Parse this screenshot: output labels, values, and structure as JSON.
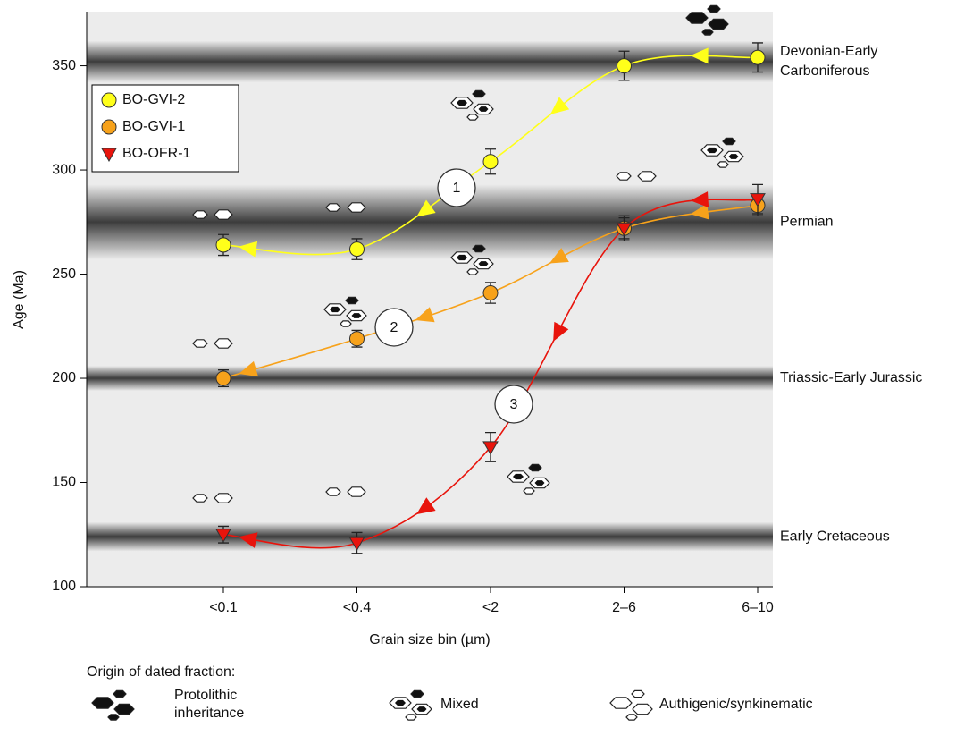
{
  "chart_data": {
    "type": "line",
    "x_label": "Grain size bin (µm)",
    "y_label": "Age (Ma)",
    "categories": [
      "<0.1",
      "<0.4",
      "<2",
      "2–6",
      "6–10"
    ],
    "ylim": [
      100,
      376
    ],
    "yticks": [
      100,
      150,
      200,
      250,
      300,
      350
    ],
    "series": [
      {
        "name": "BO-GVI-2",
        "color": "#ffff1a",
        "marker": "circle",
        "values": [
          264,
          262,
          304,
          350,
          354
        ],
        "errors": [
          5,
          5,
          6,
          7,
          7
        ]
      },
      {
        "name": "BO-GVI-1",
        "color": "#f7a21b",
        "marker": "circle",
        "values": [
          200,
          219,
          241,
          272,
          283
        ],
        "errors": [
          4,
          4,
          5,
          5,
          5
        ]
      },
      {
        "name": "BO-OFR-1",
        "color": "#e8140c",
        "marker": "triangle-down",
        "values": [
          125,
          121,
          167,
          272,
          286
        ],
        "errors": [
          4,
          5,
          7,
          6,
          7
        ]
      }
    ],
    "bands": [
      {
        "label": [
          "Devonian-Early",
          "Carboniferous"
        ],
        "value": 352,
        "range": [
          342,
          362
        ]
      },
      {
        "label": [
          "Permian"
        ],
        "value": 275,
        "range": [
          257,
          293
        ]
      },
      {
        "label": [
          "Triassic-Early Jurassic"
        ],
        "value": 200,
        "range": [
          194,
          206
        ]
      },
      {
        "label": [
          "Early Cretaceous"
        ],
        "value": 124,
        "range": [
          117,
          131
        ]
      }
    ],
    "annotations": [
      "1",
      "2",
      "3"
    ],
    "origin_legend": {
      "title": "Origin of dated fraction:",
      "items": [
        [
          "Protolithic",
          "inheritance"
        ],
        [
          "Mixed"
        ],
        [
          "Authigenic/synkinematic"
        ]
      ]
    }
  }
}
